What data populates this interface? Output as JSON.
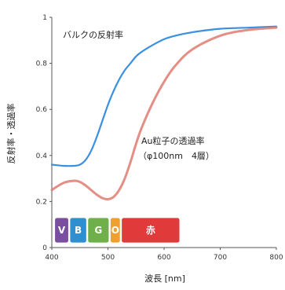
{
  "chart_data": {
    "type": "line",
    "xlabel": "波長 [nm]",
    "ylabel": "反射率・透過率",
    "xlim": [
      400,
      800
    ],
    "ylim": [
      0,
      1
    ],
    "x_ticks": [
      400,
      500,
      600,
      700,
      800
    ],
    "y_ticks": [
      0,
      0.2,
      0.4,
      0.6,
      0.8,
      1
    ],
    "y_tick_labels": [
      "0",
      "0.2",
      "0.4",
      "0.6",
      "0.8",
      "1"
    ],
    "grid": false,
    "series": [
      {
        "name": "バルクの反射率",
        "color": "#3a8fe0",
        "x": [
          400,
          420,
          440,
          450,
          460,
          470,
          480,
          490,
          500,
          510,
          520,
          530,
          540,
          550,
          560,
          580,
          600,
          620,
          650,
          700,
          750,
          800
        ],
        "y": [
          0.36,
          0.355,
          0.355,
          0.36,
          0.38,
          0.42,
          0.48,
          0.55,
          0.62,
          0.68,
          0.73,
          0.77,
          0.8,
          0.83,
          0.85,
          0.88,
          0.905,
          0.92,
          0.935,
          0.95,
          0.955,
          0.96
        ]
      },
      {
        "name": "Au粒子の透過率（φ100nm 4層）",
        "color": "#e07a70",
        "x": [
          400,
          420,
          440,
          450,
          460,
          470,
          480,
          490,
          500,
          510,
          520,
          530,
          540,
          550,
          560,
          580,
          600,
          620,
          650,
          700,
          750,
          800
        ],
        "y": [
          0.25,
          0.28,
          0.29,
          0.285,
          0.27,
          0.25,
          0.23,
          0.215,
          0.21,
          0.22,
          0.25,
          0.3,
          0.37,
          0.45,
          0.52,
          0.63,
          0.72,
          0.79,
          0.86,
          0.92,
          0.945,
          0.955
        ]
      }
    ],
    "annotations": [
      {
        "text": "バルクの反射率",
        "color": "#222222"
      },
      {
        "text": "Au粒子の透過率",
        "color": "#222222"
      },
      {
        "text": "（φ100nm　4層）",
        "color": "#222222"
      }
    ],
    "color_bands": [
      {
        "label": "V",
        "color": "#7b4fa0",
        "x0": 405,
        "x1": 430
      },
      {
        "label": "B",
        "color": "#2f8fcf",
        "x0": 432,
        "x1": 462
      },
      {
        "label": "G",
        "color": "#6fb04a",
        "x0": 464,
        "x1": 502
      },
      {
        "label": "O",
        "color": "#f0a030",
        "x0": 504,
        "x1": 522
      },
      {
        "label": "赤",
        "color": "#e03a3a",
        "x0": 524,
        "x1": 628
      }
    ]
  }
}
